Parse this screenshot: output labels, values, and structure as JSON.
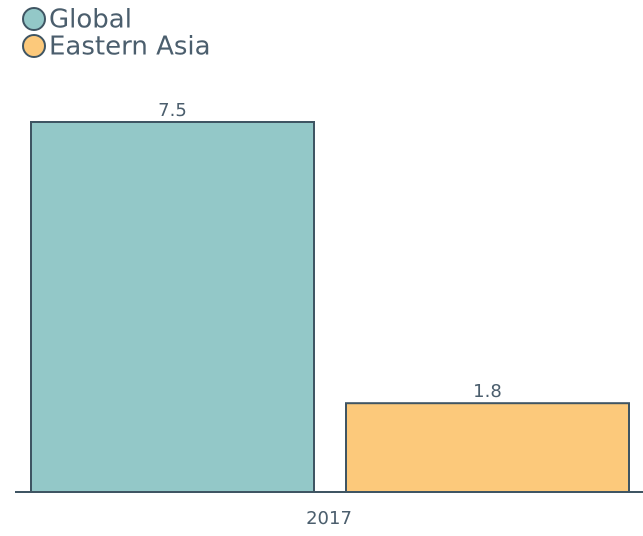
{
  "chart_data": {
    "type": "bar",
    "categories": [
      "2017"
    ],
    "series": [
      {
        "name": "Global",
        "color": "#93c8c8",
        "values": [
          7.5
        ]
      },
      {
        "name": "Eastern Asia",
        "color": "#fcc97b",
        "values": [
          1.8
        ]
      }
    ]
  }
}
